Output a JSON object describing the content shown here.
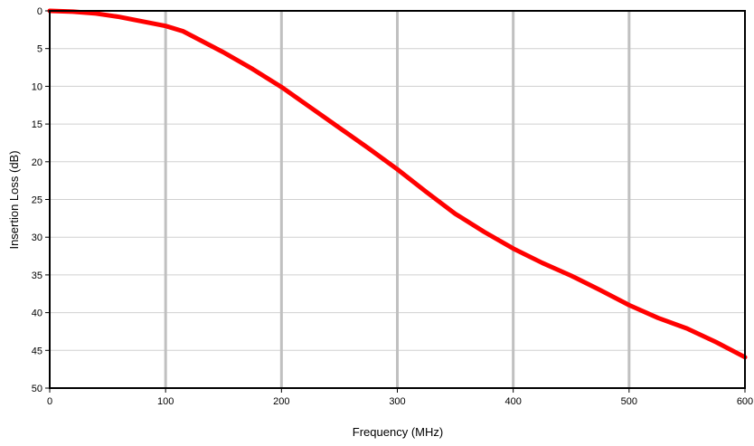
{
  "chart_data": {
    "type": "line",
    "title": "",
    "xlabel": "Frequency (MHz)",
    "ylabel": "Insertion Loss (dB)",
    "xlim": [
      0,
      600
    ],
    "ylim": [
      0,
      50
    ],
    "y_axis_inverted": true,
    "x_ticks": [
      0,
      100,
      200,
      300,
      400,
      500,
      600
    ],
    "y_ticks": [
      0,
      5,
      10,
      15,
      20,
      25,
      30,
      35,
      40,
      45,
      50
    ],
    "x_tick_labels": [
      "0",
      "100",
      "200",
      "300",
      "400",
      "500",
      "600"
    ],
    "y_tick_labels": [
      "0",
      "5",
      "10",
      "15",
      "20",
      "25",
      "30",
      "35",
      "40",
      "45",
      "50"
    ],
    "grid": {
      "vertical": true,
      "horizontal": true
    },
    "colors": {
      "series": "#ff0000",
      "vertical_grid": "#c0c0c0",
      "horizontal_grid": "#d0d0d0",
      "axis": "#000000"
    },
    "series": [
      {
        "values": [
          {
            "x": 0,
            "y": 0.0
          },
          {
            "x": 20,
            "y": 0.1
          },
          {
            "x": 40,
            "y": 0.35
          },
          {
            "x": 60,
            "y": 0.8
          },
          {
            "x": 80,
            "y": 1.4
          },
          {
            "x": 100,
            "y": 2.0
          },
          {
            "x": 115,
            "y": 2.7
          },
          {
            "x": 130,
            "y": 3.9
          },
          {
            "x": 150,
            "y": 5.5
          },
          {
            "x": 175,
            "y": 7.7
          },
          {
            "x": 200,
            "y": 10.1
          },
          {
            "x": 225,
            "y": 12.8
          },
          {
            "x": 250,
            "y": 15.5
          },
          {
            "x": 275,
            "y": 18.2
          },
          {
            "x": 300,
            "y": 21.0
          },
          {
            "x": 325,
            "y": 24.0
          },
          {
            "x": 350,
            "y": 26.9
          },
          {
            "x": 375,
            "y": 29.3
          },
          {
            "x": 400,
            "y": 31.5
          },
          {
            "x": 425,
            "y": 33.4
          },
          {
            "x": 450,
            "y": 35.1
          },
          {
            "x": 475,
            "y": 37.0
          },
          {
            "x": 500,
            "y": 39.0
          },
          {
            "x": 525,
            "y": 40.7
          },
          {
            "x": 550,
            "y": 42.1
          },
          {
            "x": 575,
            "y": 43.9
          },
          {
            "x": 600,
            "y": 45.9
          }
        ]
      }
    ]
  }
}
